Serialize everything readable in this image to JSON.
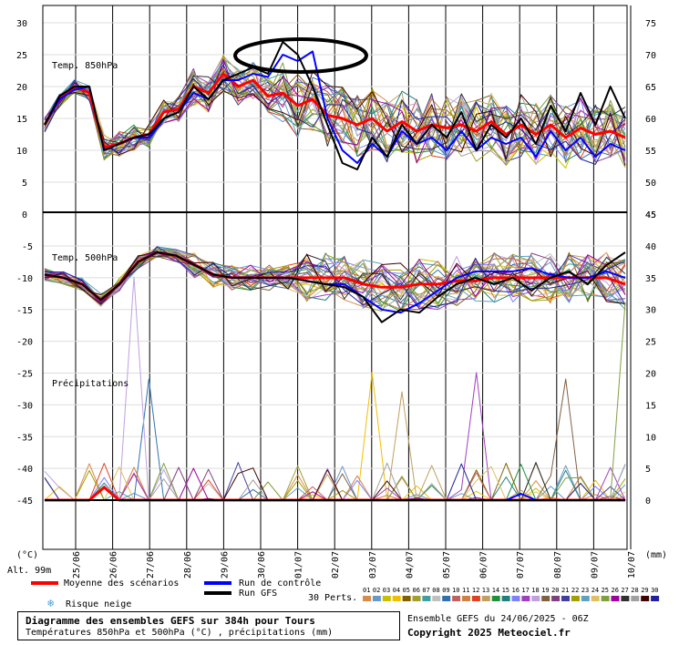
{
  "chart_data": [
    {
      "type": "line",
      "panel": "temperature-850hPa",
      "label": "Temp. 850hPa",
      "ylim_left": [
        0,
        30
      ],
      "left_ticks": [
        "0",
        "5",
        "10",
        "15",
        "20",
        "25",
        "30"
      ],
      "right_ticks": [
        "45",
        "50",
        "55",
        "60",
        "65",
        "70",
        "75"
      ],
      "series": [
        {
          "name": "Moyenne des scénarios",
          "color": "#ff0000",
          "values": [
            14,
            18,
            20,
            19,
            10.5,
            11,
            12,
            12.5,
            16,
            16.5,
            20,
            19,
            22,
            20,
            21,
            18.5,
            19,
            17,
            18,
            15.5,
            15,
            14,
            15,
            13,
            14.5,
            13,
            14,
            13.5,
            14,
            13,
            14.5,
            12.5,
            14,
            12.5,
            14,
            12,
            13.5,
            12.5,
            13,
            12
          ]
        },
        {
          "name": "Run de contrôle",
          "color": "#0000ff",
          "values": [
            14,
            18,
            19.5,
            20,
            10,
            11,
            12,
            12,
            15,
            16,
            19,
            18,
            21,
            21,
            22,
            21.5,
            25,
            24,
            25.5,
            15,
            10,
            8,
            11,
            9,
            13,
            11,
            12,
            10,
            13,
            10,
            12,
            11,
            12,
            9,
            13,
            10,
            12,
            9,
            11,
            10
          ]
        },
        {
          "name": "Run GFS",
          "color": "#000000",
          "values": [
            14,
            18.5,
            20,
            20,
            10,
            11,
            12,
            12.5,
            15,
            16,
            20,
            18,
            21,
            22,
            23,
            22,
            27,
            25,
            20,
            14,
            8,
            7,
            12,
            9,
            14,
            11,
            14,
            12,
            16,
            10,
            14,
            12,
            15,
            11,
            17,
            13,
            19,
            14,
            20,
            15
          ]
        }
      ]
    },
    {
      "type": "line",
      "panel": "temperature-500hPa",
      "label": "Temp. 500hPa",
      "ylim_left": [
        -20,
        -5
      ],
      "left_ticks": [
        "-5",
        "-10",
        "-15",
        "-20"
      ],
      "right_ticks": [
        "25",
        "30",
        "35",
        "40"
      ],
      "series": [
        {
          "name": "Moyenne des scénarios",
          "color": "#ff0000",
          "values": [
            -9.5,
            -10,
            -11,
            -13.5,
            -11,
            -7.5,
            -6,
            -6.5,
            -8,
            -9.5,
            -10,
            -10,
            -10,
            -10,
            -10,
            -10,
            -10,
            -11,
            -11.5,
            -11.5,
            -11,
            -11,
            -10.5,
            -10.5,
            -10,
            -10,
            -10,
            -10,
            -10,
            -10,
            -10,
            -11
          ]
        },
        {
          "name": "Run de contrôle",
          "color": "#0000ff",
          "values": [
            -9.5,
            -10,
            -11,
            -13.5,
            -11,
            -7.5,
            -6,
            -6.5,
            -8,
            -9.5,
            -10,
            -10,
            -10,
            -10,
            -10.5,
            -11,
            -11,
            -13,
            -15,
            -15.5,
            -14,
            -12,
            -10,
            -9,
            -9,
            -9,
            -8.5,
            -9.5,
            -10,
            -10,
            -9,
            -10
          ]
        },
        {
          "name": "Run GFS",
          "color": "#000000",
          "values": [
            -9.5,
            -10,
            -11,
            -13.5,
            -11,
            -7.5,
            -6,
            -6.5,
            -8,
            -9.5,
            -10,
            -10,
            -10,
            -10,
            -10.5,
            -11,
            -11.5,
            -13,
            -17,
            -15,
            -15.5,
            -13,
            -11,
            -10,
            -11,
            -10,
            -12,
            -10,
            -9,
            -11,
            -8,
            -6
          ]
        }
      ]
    },
    {
      "type": "line",
      "panel": "precipitation",
      "label": "Précipitations",
      "ylim_left": [
        -45,
        -30
      ],
      "left_ticks": [
        "-25",
        "-30",
        "-35",
        "-40",
        "-45"
      ],
      "right_ticks": [
        "0",
        "5",
        "10",
        "15",
        "20"
      ],
      "series": [
        {
          "name": "Moyenne des scénarios",
          "color": "#ff0000",
          "values": [
            0,
            0,
            0,
            0,
            1,
            0,
            0,
            0,
            0,
            0,
            0,
            0,
            0,
            0,
            0,
            0,
            0,
            0,
            0,
            0,
            0,
            0,
            0,
            0,
            0,
            0,
            0,
            0,
            0,
            0,
            0,
            0,
            0,
            0,
            0,
            0,
            0,
            0,
            0,
            0
          ]
        },
        {
          "name": "Run de contrôle",
          "color": "#0000ff",
          "values": [
            0,
            0,
            0,
            0,
            0,
            0,
            0,
            0,
            0,
            0,
            0,
            0,
            0,
            0,
            0,
            0,
            0,
            0,
            0,
            0,
            0,
            0,
            0,
            0,
            0,
            0,
            0,
            0,
            0,
            0,
            0,
            0,
            0.5,
            0,
            0,
            0,
            0,
            0,
            0,
            0
          ]
        },
        {
          "name": "Run GFS",
          "color": "#000000",
          "values": [
            0,
            0,
            0,
            0,
            0,
            0,
            0,
            0,
            0,
            0,
            0,
            0,
            0,
            0,
            0,
            0,
            0,
            0,
            0,
            0,
            0,
            0,
            0,
            0,
            0,
            0,
            0,
            0,
            0,
            0,
            0,
            0,
            0,
            0,
            0,
            0,
            0,
            0,
            0,
            0
          ]
        }
      ]
    }
  ],
  "axis": {
    "x_labels": [
      "25/06",
      "26/06",
      "27/06",
      "28/06",
      "29/06",
      "30/06",
      "01/07",
      "02/07",
      "03/07",
      "04/07",
      "05/07",
      "06/07",
      "07/07",
      "08/07",
      "09/07",
      "10/07"
    ],
    "unit_left": "(°C)",
    "unit_right": "(mm)",
    "altitude": "Alt. 99m"
  },
  "legend": {
    "mean_label": "Moyenne des scénarios",
    "control_label": "Run de contrôle",
    "gfs_label": "Run GFS",
    "snow_label": "Risque neige",
    "perts_label": "30 Perts.",
    "pert_numbers": [
      "01",
      "02",
      "03",
      "04",
      "05",
      "06",
      "07",
      "08",
      "09",
      "10",
      "11",
      "12",
      "13",
      "14",
      "15",
      "16",
      "17",
      "18",
      "19",
      "20",
      "21",
      "22",
      "23",
      "24",
      "25",
      "26",
      "27",
      "28",
      "29",
      "30"
    ],
    "pert_colors": [
      "#d98c4a",
      "#6699cc",
      "#c8c000",
      "#f0c000",
      "#806000",
      "#a0a030",
      "#40a0a0",
      "#c0c0c0",
      "#3070b0",
      "#c06060",
      "#d08040",
      "#e04020",
      "#c0a060",
      "#209040",
      "#208080",
      "#8080ff",
      "#a040c0",
      "#c0a0e0",
      "#806040",
      "#804080",
      "#4040a0",
      "#a0a000",
      "#60a0c0",
      "#e0c060",
      "#80a040",
      "#a000a0",
      "#303030",
      "#a0a0a0",
      "#400000",
      "#2020a0"
    ],
    "colors": {
      "mean": "#ff0000",
      "control": "#0000ff",
      "gfs": "#000000",
      "snow": "#4aa3df"
    }
  },
  "footer": {
    "title": "Diagramme des ensembles GEFS sur 384h pour Tours",
    "subtitle": "Températures 850hPa et 500hPa (°C) , précipitations (mm)",
    "run": "Ensemble GEFS du 24/06/2025 - 06Z",
    "copyright": "Copyright 2025 Meteociel.fr"
  }
}
